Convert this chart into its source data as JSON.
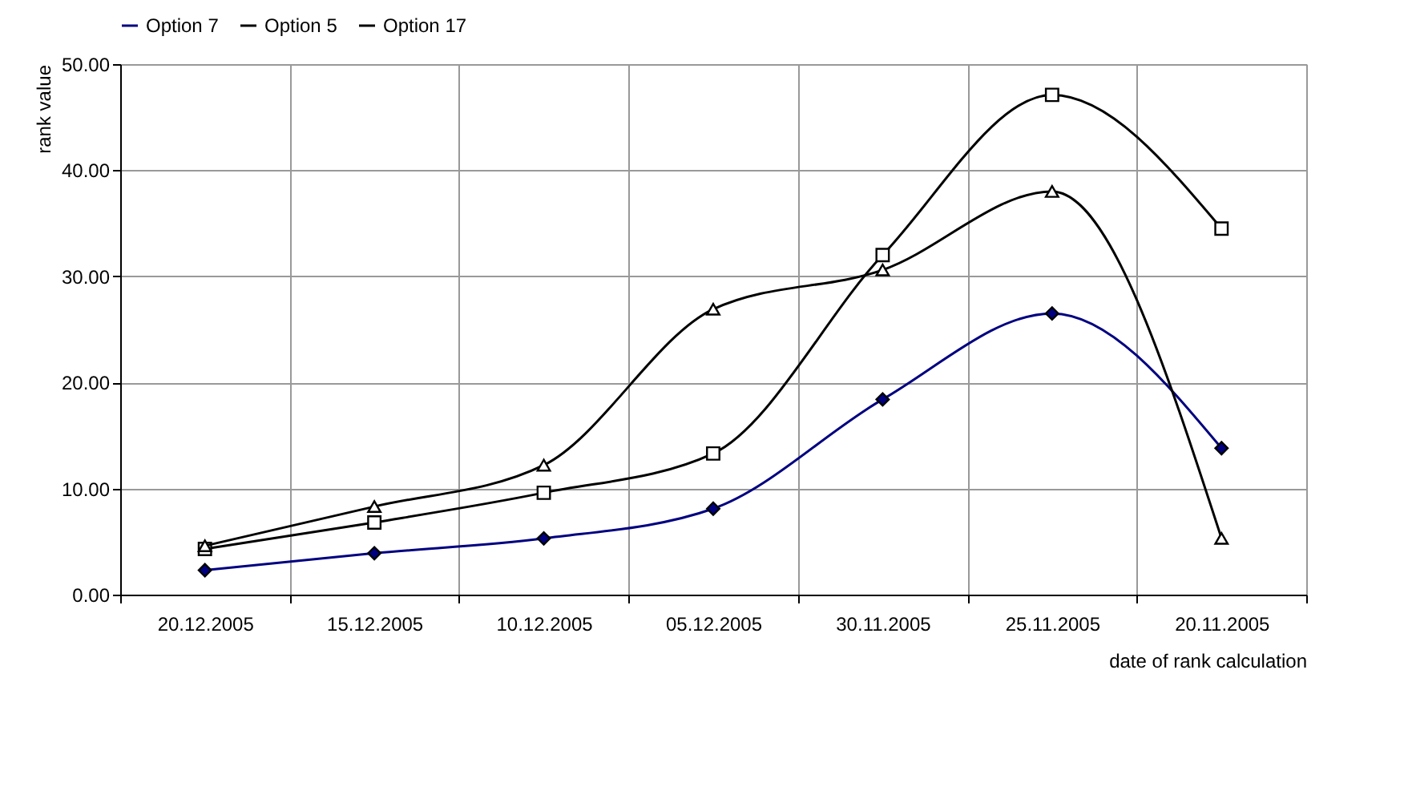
{
  "chart_data": {
    "type": "line",
    "xlabel": "date of rank calculation",
    "ylabel": "rank value",
    "categories": [
      "20.12.2005",
      "15.12.2005",
      "10.12.2005",
      "05.12.2005",
      "30.11.2005",
      "25.11.2005",
      "20.11.2005"
    ],
    "series": [
      {
        "name": "Option 7",
        "color": "#000080",
        "marker": "diamond",
        "values": [
          2.3,
          3.9,
          5.3,
          8.1,
          18.4,
          26.5,
          13.8
        ]
      },
      {
        "name": "Option 5",
        "color": "#000000",
        "marker": "square",
        "values": [
          4.3,
          6.8,
          9.6,
          13.3,
          32.0,
          47.1,
          34.5
        ]
      },
      {
        "name": "Option 17",
        "color": "#000000",
        "marker": "triangle",
        "values": [
          4.6,
          8.3,
          12.2,
          26.9,
          30.6,
          38.0,
          5.3
        ]
      }
    ],
    "ylim": [
      0,
      50
    ],
    "yticks": [
      {
        "value": 0,
        "label": "0.00"
      },
      {
        "value": 10,
        "label": "10.00"
      },
      {
        "value": 20,
        "label": "20.00"
      },
      {
        "value": 30,
        "label": "30.00"
      },
      {
        "value": 40,
        "label": "40.00"
      },
      {
        "value": 50,
        "label": "50.00"
      }
    ],
    "grid": true,
    "legend": "top",
    "line_style": "solid"
  }
}
